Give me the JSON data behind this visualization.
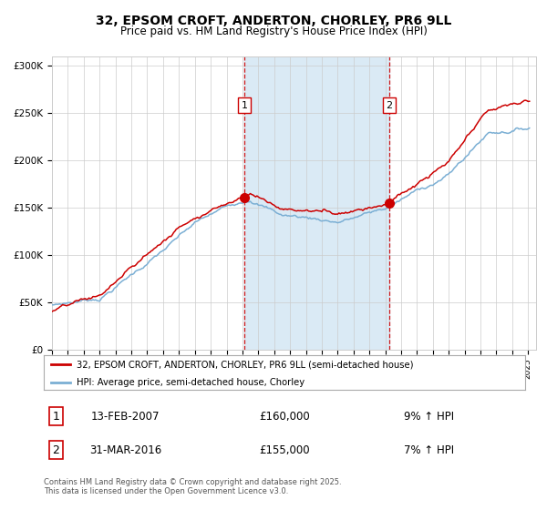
{
  "title": "32, EPSOM CROFT, ANDERTON, CHORLEY, PR6 9LL",
  "subtitle": "Price paid vs. HM Land Registry's House Price Index (HPI)",
  "title_fontsize": 10,
  "subtitle_fontsize": 8.5,
  "purchase1_date": "13-FEB-2007",
  "purchase1_price": 160000,
  "purchase1_label": "1",
  "purchase1_year": 2007.11,
  "purchase2_date": "31-MAR-2016",
  "purchase2_price": 155000,
  "purchase2_label": "2",
  "purchase2_year": 2016.25,
  "hpi_color": "#7bafd4",
  "price_color": "#cc0000",
  "marker_color": "#cc0000",
  "shading_color": "#daeaf5",
  "vline_color": "#cc0000",
  "background_color": "#ffffff",
  "grid_color": "#cccccc",
  "yticks": [
    0,
    50000,
    100000,
    150000,
    200000,
    250000,
    300000
  ],
  "ytick_labels": [
    "£0",
    "£50K",
    "£100K",
    "£150K",
    "£200K",
    "£250K",
    "£300K"
  ],
  "year_start": 1995,
  "year_end": 2025,
  "legend_price_label": "32, EPSOM CROFT, ANDERTON, CHORLEY, PR6 9LL (semi-detached house)",
  "legend_hpi_label": "HPI: Average price, semi-detached house, Chorley",
  "footer_text": "Contains HM Land Registry data © Crown copyright and database right 2025.\nThis data is licensed under the Open Government Licence v3.0.",
  "purchase1_pct": "9% ↑ HPI",
  "purchase2_pct": "7% ↑ HPI"
}
